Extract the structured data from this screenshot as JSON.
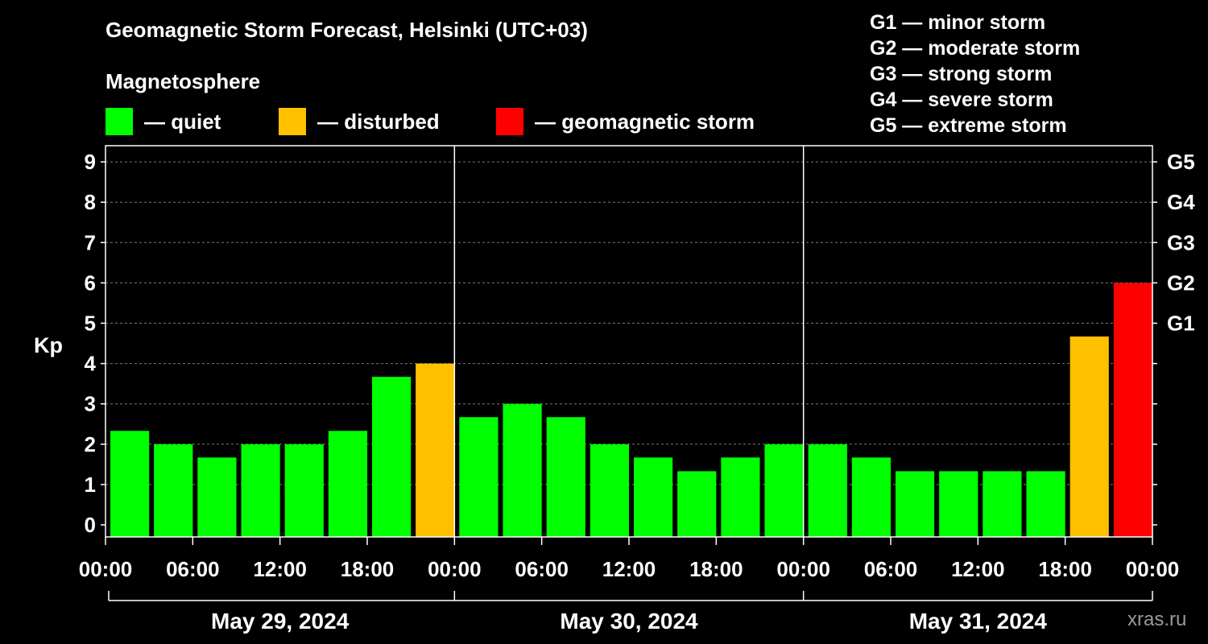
{
  "title": "Geomagnetic Storm Forecast, Helsinki (UTC+03)",
  "subtitle": "Magnetosphere",
  "legend": [
    {
      "color": "#00ff00",
      "label": "— quiet"
    },
    {
      "color": "#ffc000",
      "label": "— disturbed"
    },
    {
      "color": "#ff0000",
      "label": "— geomagnetic storm"
    }
  ],
  "g_scale": [
    "G1 — minor storm",
    "G2 — moderate storm",
    "G3 — strong storm",
    "G4 — severe storm",
    "G5 — extreme storm"
  ],
  "credit": "xras.ru",
  "chart_data": {
    "type": "bar",
    "ylabel": "Kp",
    "ylim": [
      0,
      9
    ],
    "y_ticks": [
      "0",
      "1",
      "2",
      "3",
      "4",
      "5",
      "6",
      "7",
      "8",
      "9"
    ],
    "right_ticks": [
      {
        "value": 5,
        "label": "G1"
      },
      {
        "value": 6,
        "label": "G2"
      },
      {
        "value": 7,
        "label": "G3"
      },
      {
        "value": 8,
        "label": "G4"
      },
      {
        "value": 9,
        "label": "G5"
      }
    ],
    "grid": "horizontal dashed",
    "x_tick_labels": [
      "00:00",
      "06:00",
      "12:00",
      "18:00",
      "00:00",
      "06:00",
      "12:00",
      "18:00",
      "00:00",
      "06:00",
      "12:00",
      "18:00",
      "00:00"
    ],
    "days": [
      "May 29, 2024",
      "May 30, 2024",
      "May 31, 2024"
    ],
    "interval_hours": 3,
    "values": [
      2.33,
      2.0,
      1.67,
      2.0,
      2.0,
      2.33,
      3.67,
      4.0,
      2.67,
      3.0,
      2.67,
      2.0,
      1.67,
      1.33,
      1.67,
      2.0,
      2.0,
      1.67,
      1.33,
      1.33,
      1.33,
      1.33,
      4.67,
      6.0
    ],
    "colors": {
      "quiet": "#00ff00",
      "disturbed": "#ffc000",
      "storm": "#ff0000"
    }
  }
}
